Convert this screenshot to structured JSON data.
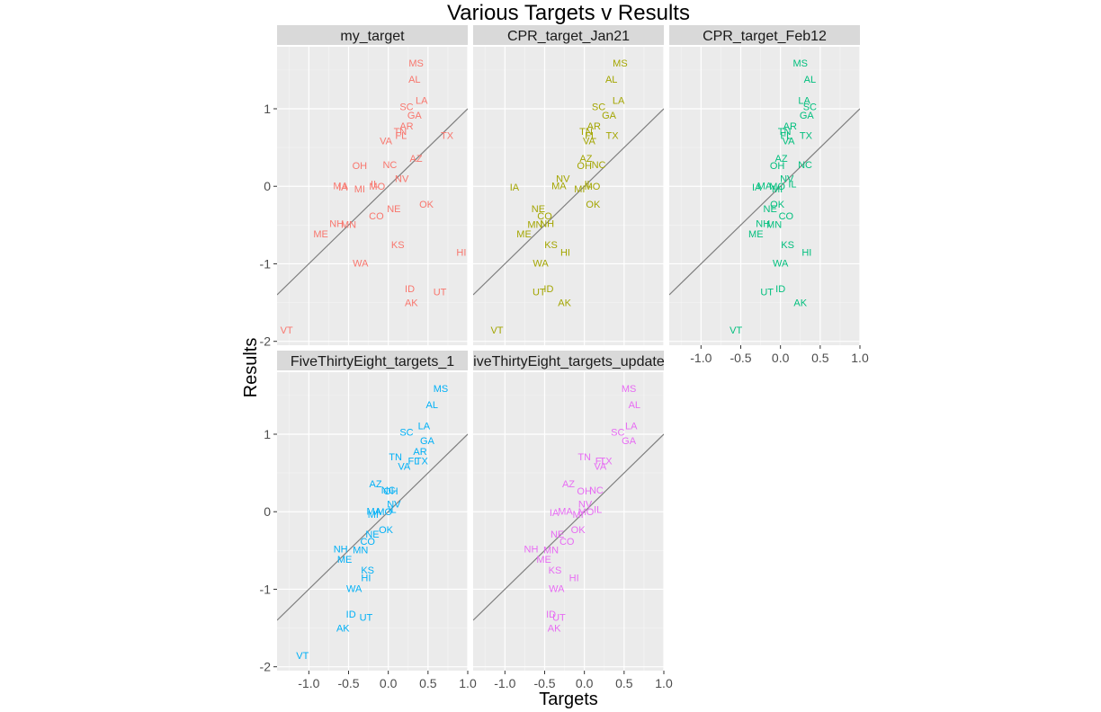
{
  "chart_data": {
    "type": "scatter",
    "title": "Various Targets v Results",
    "xlabel": "Targets",
    "ylabel": "Results",
    "xlim": [
      -1.4,
      1.0
    ],
    "ylim": [
      -2.05,
      1.8
    ],
    "x_ticks": [
      -1.0,
      -0.5,
      0.0,
      0.5,
      1.0
    ],
    "x_tick_labels": [
      "-1.0",
      "-0.5",
      "0.0",
      "0.5",
      "1.0"
    ],
    "y_ticks": [
      -2,
      -1,
      0,
      1
    ],
    "y_tick_labels": [
      "-2",
      "-1",
      "0",
      "1"
    ],
    "reference_line": {
      "slope": 1,
      "intercept": 0,
      "color": "#7f7f7f"
    },
    "grid": true,
    "legend": "none",
    "panels": [
      {
        "name": "my_target",
        "color": "#F8766D",
        "points": [
          {
            "label": "MS",
            "x": 0.35,
            "y": 1.59
          },
          {
            "label": "AL",
            "x": 0.33,
            "y": 1.38
          },
          {
            "label": "LA",
            "x": 0.42,
            "y": 1.11
          },
          {
            "label": "SC",
            "x": 0.23,
            "y": 1.03
          },
          {
            "label": "GA",
            "x": 0.33,
            "y": 0.92
          },
          {
            "label": "AR",
            "x": 0.23,
            "y": 0.78
          },
          {
            "label": "TN",
            "x": 0.15,
            "y": 0.71
          },
          {
            "label": "FL",
            "x": 0.16,
            "y": 0.66
          },
          {
            "label": "VA",
            "x": -0.03,
            "y": 0.59
          },
          {
            "label": "TX",
            "x": 0.74,
            "y": 0.66
          },
          {
            "label": "AZ",
            "x": 0.35,
            "y": 0.36
          },
          {
            "label": "OH",
            "x": -0.36,
            "y": 0.27
          },
          {
            "label": "NC",
            "x": 0.02,
            "y": 0.28
          },
          {
            "label": "NV",
            "x": 0.17,
            "y": 0.1
          },
          {
            "label": "IL",
            "x": -0.17,
            "y": 0.03
          },
          {
            "label": "MO",
            "x": -0.14,
            "y": 0.0
          },
          {
            "label": "MA",
            "x": -0.6,
            "y": 0.01
          },
          {
            "label": "IA",
            "x": -0.57,
            "y": -0.01
          },
          {
            "label": "MI",
            "x": -0.36,
            "y": -0.03
          },
          {
            "label": "OK",
            "x": 0.48,
            "y": -0.23
          },
          {
            "label": "NE",
            "x": 0.07,
            "y": -0.29
          },
          {
            "label": "CO",
            "x": -0.15,
            "y": -0.38
          },
          {
            "label": "NH",
            "x": -0.65,
            "y": -0.48
          },
          {
            "label": "MN",
            "x": -0.5,
            "y": -0.49
          },
          {
            "label": "ME",
            "x": -0.85,
            "y": -0.61
          },
          {
            "label": "KS",
            "x": 0.12,
            "y": -0.75
          },
          {
            "label": "HI",
            "x": 0.92,
            "y": -0.85
          },
          {
            "label": "WA",
            "x": -0.35,
            "y": -0.99
          },
          {
            "label": "ID",
            "x": 0.27,
            "y": -1.32
          },
          {
            "label": "UT",
            "x": 0.65,
            "y": -1.36
          },
          {
            "label": "AK",
            "x": 0.29,
            "y": -1.5
          },
          {
            "label": "VT",
            "x": -1.28,
            "y": -1.85
          }
        ]
      },
      {
        "name": "CPR_target_Jan21",
        "color": "#A3A500",
        "points": [
          {
            "label": "MS",
            "x": 0.45,
            "y": 1.59
          },
          {
            "label": "AL",
            "x": 0.34,
            "y": 1.38
          },
          {
            "label": "LA",
            "x": 0.43,
            "y": 1.11
          },
          {
            "label": "SC",
            "x": 0.18,
            "y": 1.03
          },
          {
            "label": "GA",
            "x": 0.31,
            "y": 0.92
          },
          {
            "label": "AR",
            "x": 0.12,
            "y": 0.78
          },
          {
            "label": "TN",
            "x": 0.02,
            "y": 0.71
          },
          {
            "label": "FL",
            "x": 0.08,
            "y": 0.66
          },
          {
            "label": "VA",
            "x": 0.06,
            "y": 0.59
          },
          {
            "label": "TX",
            "x": 0.35,
            "y": 0.66
          },
          {
            "label": "AZ",
            "x": 0.02,
            "y": 0.36
          },
          {
            "label": "OH",
            "x": 0.0,
            "y": 0.27
          },
          {
            "label": "NC",
            "x": 0.18,
            "y": 0.28
          },
          {
            "label": "NV",
            "x": -0.27,
            "y": 0.1
          },
          {
            "label": "IL",
            "x": 0.05,
            "y": 0.03
          },
          {
            "label": "MO",
            "x": 0.1,
            "y": 0.0
          },
          {
            "label": "MA",
            "x": -0.32,
            "y": 0.01
          },
          {
            "label": "IA",
            "x": -0.88,
            "y": -0.01
          },
          {
            "label": "MI",
            "x": -0.06,
            "y": -0.03
          },
          {
            "label": "OK",
            "x": 0.11,
            "y": -0.23
          },
          {
            "label": "NE",
            "x": -0.58,
            "y": -0.29
          },
          {
            "label": "CO",
            "x": -0.5,
            "y": -0.38
          },
          {
            "label": "NH",
            "x": -0.47,
            "y": -0.48
          },
          {
            "label": "MN",
            "x": -0.62,
            "y": -0.49
          },
          {
            "label": "ME",
            "x": -0.76,
            "y": -0.61
          },
          {
            "label": "KS",
            "x": -0.42,
            "y": -0.75
          },
          {
            "label": "HI",
            "x": -0.24,
            "y": -0.85
          },
          {
            "label": "WA",
            "x": -0.55,
            "y": -0.99
          },
          {
            "label": "ID",
            "x": -0.45,
            "y": -1.32
          },
          {
            "label": "UT",
            "x": -0.57,
            "y": -1.36
          },
          {
            "label": "AK",
            "x": -0.25,
            "y": -1.5
          },
          {
            "label": "VT",
            "x": -1.1,
            "y": -1.85
          }
        ]
      },
      {
        "name": "CPR_target_Feb12",
        "color": "#00BF7D",
        "points": [
          {
            "label": "MS",
            "x": 0.25,
            "y": 1.59
          },
          {
            "label": "AL",
            "x": 0.37,
            "y": 1.38
          },
          {
            "label": "LA",
            "x": 0.3,
            "y": 1.11
          },
          {
            "label": "SC",
            "x": 0.37,
            "y": 1.03
          },
          {
            "label": "GA",
            "x": 0.33,
            "y": 0.92
          },
          {
            "label": "AR",
            "x": 0.12,
            "y": 0.78
          },
          {
            "label": "TN",
            "x": 0.05,
            "y": 0.71
          },
          {
            "label": "FL",
            "x": 0.07,
            "y": 0.66
          },
          {
            "label": "VA",
            "x": 0.1,
            "y": 0.59
          },
          {
            "label": "TX",
            "x": 0.32,
            "y": 0.66
          },
          {
            "label": "AZ",
            "x": 0.01,
            "y": 0.36
          },
          {
            "label": "OH",
            "x": -0.04,
            "y": 0.27
          },
          {
            "label": "NC",
            "x": 0.31,
            "y": 0.28
          },
          {
            "label": "NV",
            "x": 0.08,
            "y": 0.1
          },
          {
            "label": "IL",
            "x": 0.15,
            "y": 0.03
          },
          {
            "label": "MO",
            "x": -0.04,
            "y": 0.0
          },
          {
            "label": "MA",
            "x": -0.2,
            "y": 0.01
          },
          {
            "label": "IA",
            "x": -0.3,
            "y": -0.01
          },
          {
            "label": "MI",
            "x": -0.04,
            "y": -0.03
          },
          {
            "label": "OK",
            "x": -0.04,
            "y": -0.23
          },
          {
            "label": "NE",
            "x": -0.13,
            "y": -0.29
          },
          {
            "label": "CO",
            "x": 0.07,
            "y": -0.38
          },
          {
            "label": "NH",
            "x": -0.22,
            "y": -0.48
          },
          {
            "label": "MN",
            "x": -0.08,
            "y": -0.49
          },
          {
            "label": "ME",
            "x": -0.31,
            "y": -0.61
          },
          {
            "label": "KS",
            "x": 0.09,
            "y": -0.75
          },
          {
            "label": "HI",
            "x": 0.33,
            "y": -0.85
          },
          {
            "label": "WA",
            "x": 0.0,
            "y": -0.99
          },
          {
            "label": "ID",
            "x": 0.0,
            "y": -1.32
          },
          {
            "label": "UT",
            "x": -0.17,
            "y": -1.36
          },
          {
            "label": "AK",
            "x": 0.25,
            "y": -1.5
          },
          {
            "label": "VT",
            "x": -0.56,
            "y": -1.85
          }
        ]
      },
      {
        "name": "FiveThirtyEight_targets_1",
        "color": "#00B0F6",
        "points": [
          {
            "label": "MS",
            "x": 0.66,
            "y": 1.59
          },
          {
            "label": "AL",
            "x": 0.55,
            "y": 1.38
          },
          {
            "label": "LA",
            "x": 0.45,
            "y": 1.11
          },
          {
            "label": "SC",
            "x": 0.23,
            "y": 1.03
          },
          {
            "label": "GA",
            "x": 0.49,
            "y": 0.92
          },
          {
            "label": "AR",
            "x": 0.4,
            "y": 0.78
          },
          {
            "label": "TN",
            "x": 0.09,
            "y": 0.71
          },
          {
            "label": "FL",
            "x": 0.32,
            "y": 0.66
          },
          {
            "label": "VA",
            "x": 0.2,
            "y": 0.59
          },
          {
            "label": "TX",
            "x": 0.42,
            "y": 0.66
          },
          {
            "label": "AZ",
            "x": -0.16,
            "y": 0.36
          },
          {
            "label": "OH",
            "x": 0.03,
            "y": 0.27
          },
          {
            "label": "NC",
            "x": 0.0,
            "y": 0.28
          },
          {
            "label": "NV",
            "x": 0.07,
            "y": 0.1
          },
          {
            "label": "IL",
            "x": 0.05,
            "y": 0.03
          },
          {
            "label": "MO",
            "x": -0.05,
            "y": 0.0
          },
          {
            "label": "MA",
            "x": -0.18,
            "y": 0.01
          },
          {
            "label": "MI",
            "x": -0.19,
            "y": -0.03
          },
          {
            "label": "OK",
            "x": -0.03,
            "y": -0.23
          },
          {
            "label": "NE",
            "x": -0.2,
            "y": -0.29
          },
          {
            "label": "CO",
            "x": -0.26,
            "y": -0.38
          },
          {
            "label": "NH",
            "x": -0.6,
            "y": -0.48
          },
          {
            "label": "MN",
            "x": -0.35,
            "y": -0.49
          },
          {
            "label": "ME",
            "x": -0.55,
            "y": -0.61
          },
          {
            "label": "KS",
            "x": -0.26,
            "y": -0.75
          },
          {
            "label": "HI",
            "x": -0.28,
            "y": -0.85
          },
          {
            "label": "WA",
            "x": -0.43,
            "y": -0.99
          },
          {
            "label": "ID",
            "x": -0.47,
            "y": -1.32
          },
          {
            "label": "UT",
            "x": -0.28,
            "y": -1.36
          },
          {
            "label": "AK",
            "x": -0.57,
            "y": -1.5
          },
          {
            "label": "VT",
            "x": -1.08,
            "y": -1.85
          }
        ]
      },
      {
        "name": "FiveThirtyEight_targets_updated",
        "color": "#E76BF3",
        "points": [
          {
            "label": "MS",
            "x": 0.56,
            "y": 1.59
          },
          {
            "label": "AL",
            "x": 0.63,
            "y": 1.38
          },
          {
            "label": "LA",
            "x": 0.59,
            "y": 1.11
          },
          {
            "label": "SC",
            "x": 0.42,
            "y": 1.03
          },
          {
            "label": "GA",
            "x": 0.56,
            "y": 0.92
          },
          {
            "label": "TN",
            "x": 0.0,
            "y": 0.71
          },
          {
            "label": "FL",
            "x": 0.21,
            "y": 0.66
          },
          {
            "label": "TX",
            "x": 0.27,
            "y": 0.66
          },
          {
            "label": "VA",
            "x": 0.2,
            "y": 0.59
          },
          {
            "label": "AZ",
            "x": -0.2,
            "y": 0.36
          },
          {
            "label": "OH",
            "x": 0.0,
            "y": 0.27
          },
          {
            "label": "NC",
            "x": 0.15,
            "y": 0.28
          },
          {
            "label": "NV",
            "x": 0.01,
            "y": 0.1
          },
          {
            "label": "IL",
            "x": 0.17,
            "y": 0.03
          },
          {
            "label": "MO",
            "x": 0.02,
            "y": 0.0
          },
          {
            "label": "MA",
            "x": -0.24,
            "y": 0.01
          },
          {
            "label": "IA",
            "x": -0.38,
            "y": -0.01
          },
          {
            "label": "MI",
            "x": -0.08,
            "y": -0.03
          },
          {
            "label": "OK",
            "x": -0.08,
            "y": -0.23
          },
          {
            "label": "NE",
            "x": -0.34,
            "y": -0.29
          },
          {
            "label": "CO",
            "x": -0.22,
            "y": -0.38
          },
          {
            "label": "NH",
            "x": -0.67,
            "y": -0.48
          },
          {
            "label": "MN",
            "x": -0.42,
            "y": -0.49
          },
          {
            "label": "ME",
            "x": -0.51,
            "y": -0.61
          },
          {
            "label": "KS",
            "x": -0.37,
            "y": -0.75
          },
          {
            "label": "HI",
            "x": -0.13,
            "y": -0.85
          },
          {
            "label": "WA",
            "x": -0.35,
            "y": -0.99
          },
          {
            "label": "ID",
            "x": -0.42,
            "y": -1.32
          },
          {
            "label": "UT",
            "x": -0.32,
            "y": -1.36
          },
          {
            "label": "AK",
            "x": -0.38,
            "y": -1.5
          }
        ]
      }
    ]
  }
}
